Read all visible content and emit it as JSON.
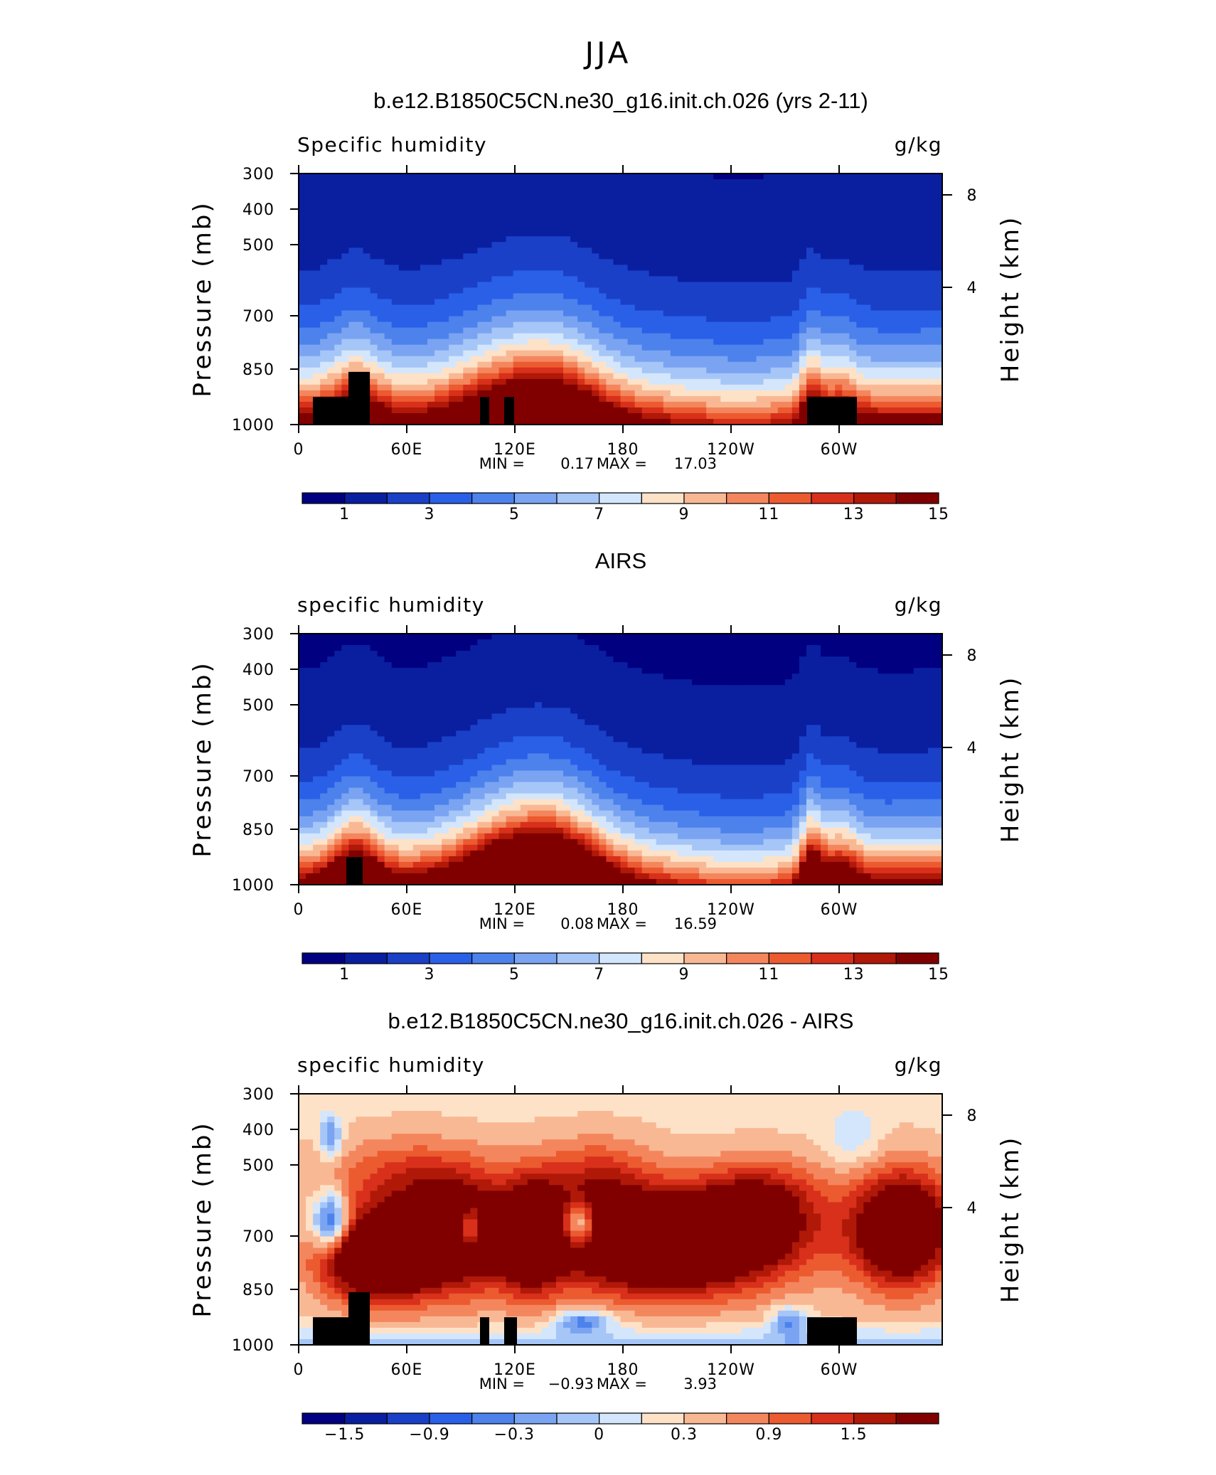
{
  "figure_title": "JJA",
  "chart_data": [
    {
      "type": "heatmap",
      "title": "b.e12.B1850C5CN.ne30_g16.init.ch.026 (yrs 2-11)",
      "left_label": "Specific humidity",
      "right_label": "g/kg",
      "ylabel": "Pressure (mb)",
      "ylabel_right": "Height (km)",
      "x_ticks": [
        "0",
        "60E",
        "120E",
        "180",
        "120W",
        "60W"
      ],
      "y_ticks": [
        "300",
        "400",
        "500",
        "700",
        "850",
        "1000"
      ],
      "y_ticks_right": [
        "8",
        "4"
      ],
      "stats": {
        "min_label": "MIN =",
        "min": "0.17",
        "max_label": "MAX =",
        "max": "17.03"
      },
      "colorbar_ticks": [
        "1",
        "3",
        "5",
        "7",
        "9",
        "11",
        "13",
        "15"
      ],
      "surface_column_count": 4
    },
    {
      "type": "heatmap",
      "title": "AIRS",
      "left_label": "specific humidity",
      "right_label": "g/kg",
      "ylabel": "Pressure (mb)",
      "ylabel_right": "Height (km)",
      "x_ticks": [
        "0",
        "60E",
        "120E",
        "180",
        "120W",
        "60W"
      ],
      "y_ticks": [
        "300",
        "400",
        "500",
        "700",
        "850",
        "1000"
      ],
      "y_ticks_right": [
        "8",
        "4"
      ],
      "stats": {
        "min_label": "MIN =",
        "min": "0.08",
        "max_label": "MAX =",
        "max": "16.59"
      },
      "colorbar_ticks": [
        "1",
        "3",
        "5",
        "7",
        "9",
        "11",
        "13",
        "15"
      ],
      "surface_column_count": 1
    },
    {
      "type": "heatmap",
      "title": "b.e12.B1850C5CN.ne30_g16.init.ch.026 - AIRS",
      "left_label": "specific humidity",
      "right_label": "g/kg",
      "ylabel": "Pressure (mb)",
      "ylabel_right": "Height (km)",
      "x_ticks": [
        "0",
        "60E",
        "120E",
        "180",
        "120W",
        "60W"
      ],
      "y_ticks": [
        "300",
        "400",
        "500",
        "700",
        "850",
        "1000"
      ],
      "y_ticks_right": [
        "8",
        "4"
      ],
      "stats": {
        "min_label": "MIN =",
        "min": "−0.93",
        "max_label": "MAX =",
        "max": "3.93"
      },
      "colorbar_ticks": [
        "−1.5",
        "−0.9",
        "−0.3",
        "0",
        "0.3",
        "0.9",
        "1.5"
      ],
      "surface_column_count": 4
    }
  ],
  "colorbar_colors": [
    "#000080",
    "#0a1ea0",
    "#1a40c8",
    "#2a60e8",
    "#4d82ec",
    "#7aa4f2",
    "#a6c6f8",
    "#d4e6fb",
    "#fde2c8",
    "#f9b894",
    "#f4865e",
    "#ec5a30",
    "#d8301a",
    "#b01808",
    "#800000"
  ]
}
